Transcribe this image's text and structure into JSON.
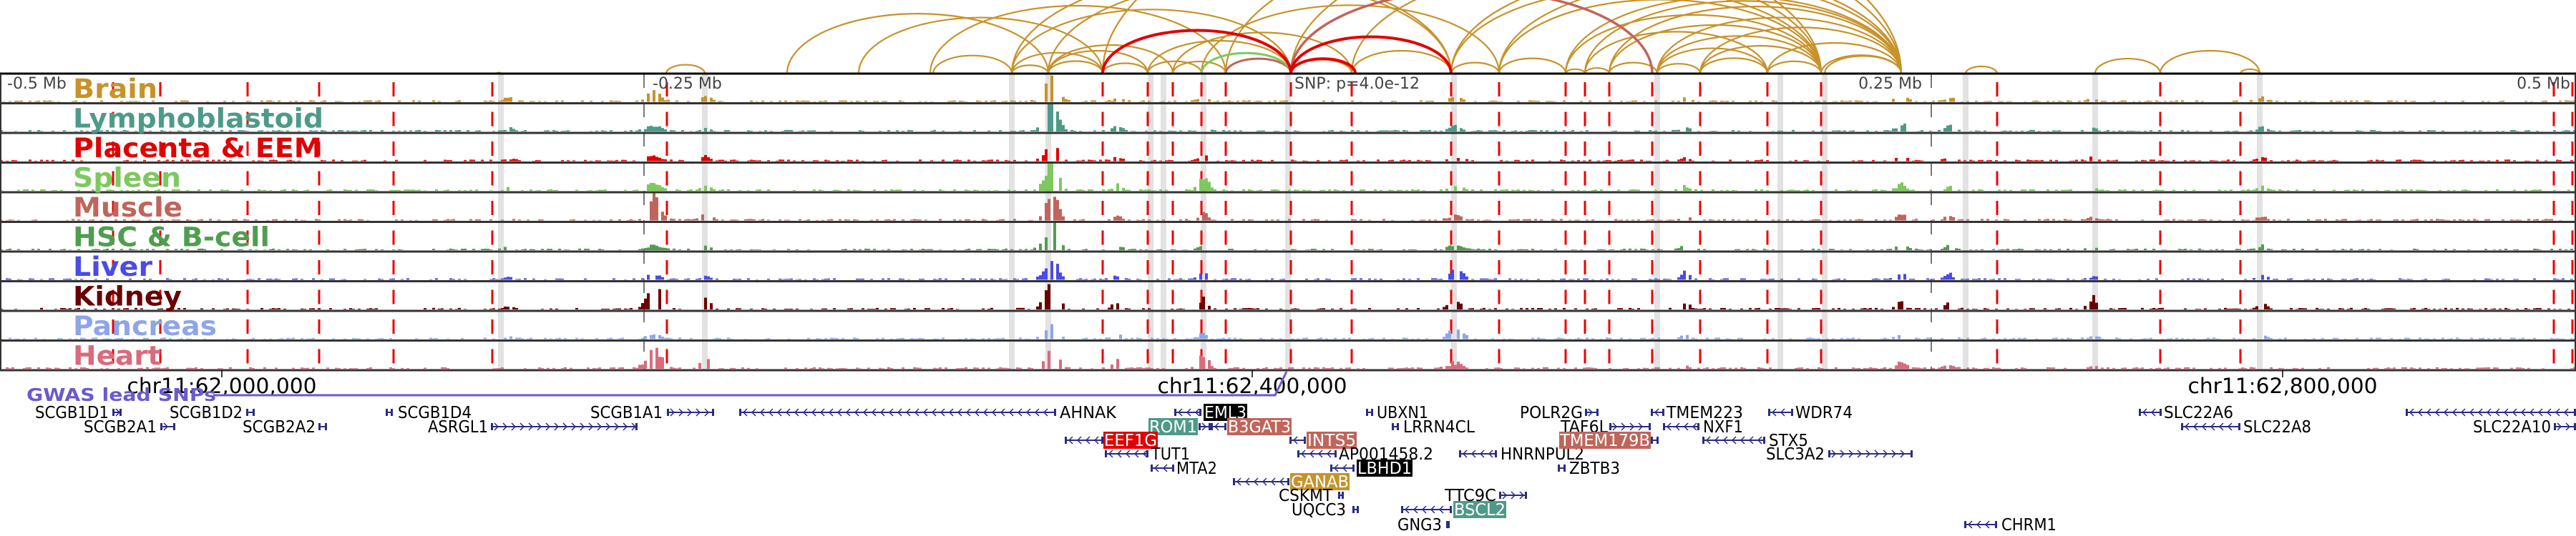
{
  "colors": {
    "gene": "#2b2b86",
    "red_marker": "#ee0000",
    "gray_band": "#e2e2e2",
    "gwas": "#6a5acd",
    "highlight_black": "#000000",
    "highlight_teal": "#4e9a8a",
    "highlight_muscle": "#c0655b",
    "highlight_red": "#e00000",
    "highlight_gold": "#c8922a"
  },
  "header": {
    "minus_half": "-0.5 Mb",
    "minus_quarter": "-0.25 Mb",
    "snp_label": "SNP: p=4.0e-12",
    "plus_quarter": "0.25 Mb",
    "plus_half": "0.5 Mb"
  },
  "tracks": [
    {
      "label": "Brain",
      "color": "#c8922a"
    },
    {
      "label": "Lymphoblastoid",
      "color": "#4e9a8a"
    },
    {
      "label": "Placenta & EEM",
      "color": "#e00000"
    },
    {
      "label": "Spleen",
      "color": "#7dc95e"
    },
    {
      "label": "Muscle",
      "color": "#c0655b"
    },
    {
      "label": "HSC & B-cell",
      "color": "#4f9e4f"
    },
    {
      "label": "Liver",
      "color": "#4b4be8"
    },
    {
      "label": "Kidney",
      "color": "#6b0000"
    },
    {
      "label": "Pancreas",
      "color": "#8ea6e6"
    },
    {
      "label": "Heart",
      "color": "#d96b7c"
    }
  ],
  "axis": {
    "ticks": [
      "chr11:62,000,000",
      "chr11:62,400,000",
      "chr11:62,800,000"
    ]
  },
  "gwas": {
    "label": "GWAS lead SNPs"
  },
  "genes": [
    {
      "name": "SCGB1D1",
      "strand": "+"
    },
    {
      "name": "SCGB2A1",
      "strand": "+"
    },
    {
      "name": "SCGB1D2",
      "strand": "+"
    },
    {
      "name": "SCGB2A2",
      "strand": "+"
    },
    {
      "name": "SCGB1D4",
      "strand": "-"
    },
    {
      "name": "ASRGL1",
      "strand": "+"
    },
    {
      "name": "SCGB1A1",
      "strand": "+"
    },
    {
      "name": "AHNAK",
      "strand": "-"
    },
    {
      "name": "EML3",
      "strand": "-",
      "highlight": "#000000"
    },
    {
      "name": "ROM1",
      "strand": "+",
      "highlight": "#4e9a8a"
    },
    {
      "name": "B3GAT3",
      "strand": "-",
      "highlight": "#c0655b"
    },
    {
      "name": "EEF1G",
      "strand": "-",
      "highlight": "#e00000"
    },
    {
      "name": "TUT1",
      "strand": "-"
    },
    {
      "name": "MTA2",
      "strand": "-"
    },
    {
      "name": "GANAB",
      "strand": "-",
      "highlight": "#c8922a"
    },
    {
      "name": "INTS5",
      "strand": "-",
      "highlight": "#c0655b"
    },
    {
      "name": "AP001458.2",
      "strand": "-"
    },
    {
      "name": "LBHD1",
      "strand": "-",
      "highlight": "#000000"
    },
    {
      "name": "CSKMT",
      "strand": "+"
    },
    {
      "name": "UQCC3",
      "strand": "+"
    },
    {
      "name": "UBXN1",
      "strand": "-"
    },
    {
      "name": "LRRN4CL",
      "strand": "-"
    },
    {
      "name": "GNG3",
      "strand": "+"
    },
    {
      "name": "BSCL2",
      "strand": "-",
      "highlight": "#4e9a8a"
    },
    {
      "name": "TTC9C",
      "strand": "+"
    },
    {
      "name": "HNRNPUL2",
      "strand": "-"
    },
    {
      "name": "POLR2G",
      "strand": "+"
    },
    {
      "name": "TAF6L",
      "strand": "+"
    },
    {
      "name": "TMEM179B",
      "strand": "+",
      "highlight": "#c0655b"
    },
    {
      "name": "ZBTB3",
      "strand": "-"
    },
    {
      "name": "TMEM223",
      "strand": "-"
    },
    {
      "name": "NXF1",
      "strand": "-"
    },
    {
      "name": "STX5",
      "strand": "-"
    },
    {
      "name": "SLC3A2",
      "strand": "+"
    },
    {
      "name": "WDR74",
      "strand": "-"
    },
    {
      "name": "CHRM1",
      "strand": "-"
    },
    {
      "name": "SLC22A6",
      "strand": "-"
    },
    {
      "name": "SLC22A8",
      "strand": "-"
    },
    {
      "name": "SLC22A10",
      "strand": "+"
    }
  ]
}
